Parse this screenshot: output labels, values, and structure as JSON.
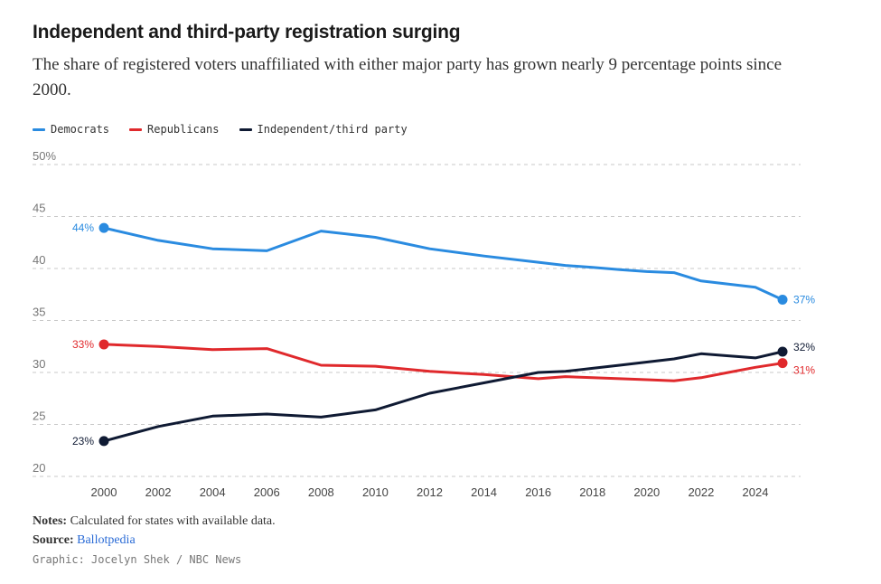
{
  "header": {
    "title": "Independent and third-party registration surging",
    "subtitle": "The share of registered voters unaffiliated with either major party has grown nearly 9 percentage points since 2000."
  },
  "footer": {
    "notes_label": "Notes:",
    "notes_text": "Calculated for states with available data.",
    "source_label": "Source:",
    "source_link": "Ballotpedia",
    "credit": "Graphic: Jocelyn Shek / NBC News"
  },
  "chart_data": {
    "type": "line",
    "xlim": [
      1999,
      2026
    ],
    "ylim": [
      20,
      50
    ],
    "yticks": [
      20,
      25,
      30,
      35,
      40,
      45,
      50
    ],
    "ytick_labels": [
      "20",
      "25",
      "30",
      "35",
      "40",
      "45",
      "50%"
    ],
    "xticks": [
      2000,
      2002,
      2004,
      2006,
      2008,
      2010,
      2012,
      2014,
      2016,
      2018,
      2020,
      2022,
      2024
    ],
    "grid": true,
    "legend_position": "top-left",
    "series": [
      {
        "name": "Democrats",
        "color": "#2a8be0",
        "x": [
          2000,
          2002,
          2004,
          2006,
          2008,
          2010,
          2012,
          2014,
          2016,
          2017,
          2018,
          2019,
          2020,
          2021,
          2022,
          2023,
          2024,
          2025
        ],
        "values": [
          43.9,
          42.7,
          41.9,
          41.7,
          43.6,
          43.0,
          41.9,
          41.2,
          40.6,
          40.3,
          40.1,
          39.9,
          39.7,
          39.6,
          38.8,
          38.5,
          38.2,
          37.0
        ],
        "start_label": "44%",
        "end_label": "37%"
      },
      {
        "name": "Republicans",
        "color": "#e0292c",
        "x": [
          2000,
          2002,
          2004,
          2006,
          2008,
          2010,
          2012,
          2014,
          2016,
          2017,
          2018,
          2019,
          2020,
          2021,
          2022,
          2023,
          2024,
          2025
        ],
        "values": [
          32.7,
          32.5,
          32.2,
          32.3,
          30.7,
          30.6,
          30.1,
          29.8,
          29.4,
          29.6,
          29.5,
          29.4,
          29.3,
          29.2,
          29.5,
          30.0,
          30.5,
          30.9
        ],
        "start_label": "33%",
        "end_label": "31%"
      },
      {
        "name": "Independent/third party",
        "color": "#0f1a33",
        "x": [
          2000,
          2002,
          2004,
          2006,
          2008,
          2010,
          2012,
          2014,
          2016,
          2017,
          2018,
          2019,
          2020,
          2021,
          2022,
          2023,
          2024,
          2025
        ],
        "values": [
          23.4,
          24.8,
          25.8,
          26.0,
          25.7,
          26.4,
          28.0,
          29.0,
          30.0,
          30.1,
          30.4,
          30.7,
          31.0,
          31.3,
          31.8,
          31.6,
          31.4,
          32.0
        ],
        "start_label": "23%",
        "end_label": "32%"
      }
    ]
  }
}
